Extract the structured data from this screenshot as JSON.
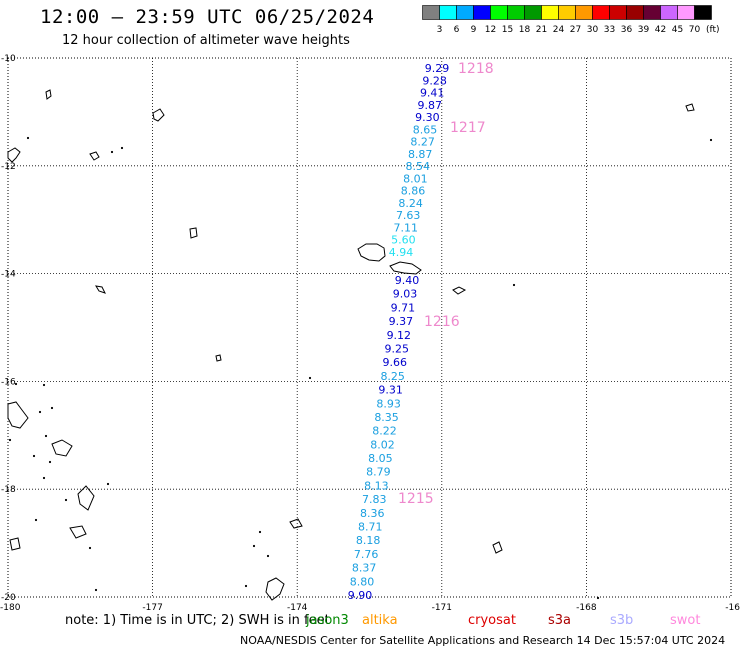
{
  "header": {
    "title": "12:00 – 23:59 UTC 06/25/2024",
    "subtitle": "12 hour collection of altimeter wave heights"
  },
  "colorbar": {
    "unit": "(ft)",
    "ticks": [
      "3",
      "6",
      "9",
      "12",
      "15",
      "18",
      "21",
      "24",
      "27",
      "30",
      "33",
      "36",
      "39",
      "42",
      "45",
      "70"
    ],
    "colors": [
      "#808080",
      "#00ffff",
      "#00aaff",
      "#0000ff",
      "#00ff00",
      "#00cc00",
      "#009900",
      "#ffff00",
      "#ffcc00",
      "#ff9900",
      "#ff0000",
      "#cc0000",
      "#990000",
      "#660033",
      "#cc66ff",
      "#ff99ff",
      "#000000"
    ]
  },
  "axes": {
    "lon_labels": [
      "-180",
      "-177",
      "-174",
      "-171",
      "-168",
      "-16"
    ],
    "lat_labels": [
      "-10",
      "-12",
      "-14",
      "-16",
      "-18",
      "-20"
    ],
    "lon_range": [
      -180,
      -165
    ],
    "lat_range": [
      -20,
      -10
    ]
  },
  "track": {
    "upper": [
      {
        "v": "9.29",
        "c": "#0000cc"
      },
      {
        "v": "9.28",
        "c": "#0000cc"
      },
      {
        "v": "9.41",
        "c": "#0000cc"
      },
      {
        "v": "9.87",
        "c": "#0000cc"
      },
      {
        "v": "9.30",
        "c": "#0000cc"
      },
      {
        "v": "8.65",
        "c": "#1a9fe0"
      },
      {
        "v": "8.27",
        "c": "#1a9fe0"
      },
      {
        "v": "8.87",
        "c": "#1a9fe0"
      },
      {
        "v": "8.54",
        "c": "#1a9fe0"
      },
      {
        "v": "8.01",
        "c": "#1a9fe0"
      },
      {
        "v": "8.86",
        "c": "#1a9fe0"
      },
      {
        "v": "8.24",
        "c": "#1a9fe0"
      },
      {
        "v": "7.63",
        "c": "#1a9fe0"
      },
      {
        "v": "7.11",
        "c": "#1a9fe0"
      },
      {
        "v": "5.60",
        "c": "#22e0f0"
      },
      {
        "v": "4.94",
        "c": "#22e0f0"
      }
    ],
    "lower": [
      {
        "v": "9.40",
        "c": "#0000cc"
      },
      {
        "v": "9.03",
        "c": "#0000cc"
      },
      {
        "v": "9.71",
        "c": "#0000cc"
      },
      {
        "v": "9.37",
        "c": "#0000cc"
      },
      {
        "v": "9.12",
        "c": "#0000cc"
      },
      {
        "v": "9.25",
        "c": "#0000cc"
      },
      {
        "v": "9.66",
        "c": "#0000cc"
      },
      {
        "v": "8.25",
        "c": "#1a9fe0"
      },
      {
        "v": "9.31",
        "c": "#0000cc"
      },
      {
        "v": "8.93",
        "c": "#1a9fe0"
      },
      {
        "v": "8.35",
        "c": "#1a9fe0"
      },
      {
        "v": "8.22",
        "c": "#1a9fe0"
      },
      {
        "v": "8.02",
        "c": "#1a9fe0"
      },
      {
        "v": "8.05",
        "c": "#1a9fe0"
      },
      {
        "v": "8.79",
        "c": "#1a9fe0"
      },
      {
        "v": "8.13",
        "c": "#1a9fe0"
      },
      {
        "v": "7.83",
        "c": "#1a9fe0"
      },
      {
        "v": "8.36",
        "c": "#1a9fe0"
      },
      {
        "v": "8.71",
        "c": "#1a9fe0"
      },
      {
        "v": "8.18",
        "c": "#1a9fe0"
      },
      {
        "v": "7.76",
        "c": "#1a9fe0"
      },
      {
        "v": "8.37",
        "c": "#1a9fe0"
      },
      {
        "v": "8.80",
        "c": "#1a9fe0"
      },
      {
        "v": "9.90",
        "c": "#0000cc"
      }
    ],
    "time_labels": [
      "1218",
      "1217",
      "1216",
      "1215"
    ],
    "time_color": "#ee88cc"
  },
  "footer": {
    "note": "note:  1) Time is in UTC; 2) SWH is in feet",
    "satellites": [
      {
        "name": "jason3",
        "color": "#008800"
      },
      {
        "name": "altika",
        "color": "#ff9900"
      },
      {
        "name": "cryosat",
        "color": "#dd0000"
      },
      {
        "name": "s3a",
        "color": "#aa0000"
      },
      {
        "name": "s3b",
        "color": "#aaaaff"
      },
      {
        "name": "swot",
        "color": "#ff88dd"
      }
    ],
    "credit": "NOAA/NESDIS Center for Satellite Applications and Research    14 Dec 15:57:04 UTC 2024"
  }
}
